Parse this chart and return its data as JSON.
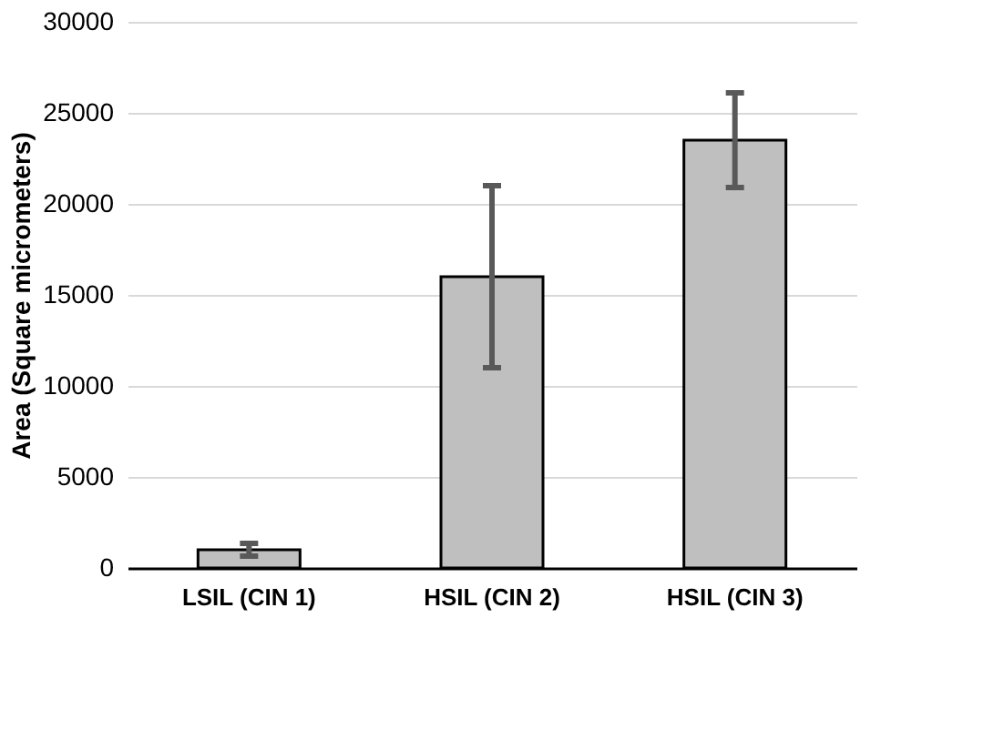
{
  "chart_data": {
    "type": "bar",
    "ylabel": "Area (Square micrometers)",
    "categories": [
      "LSIL (CIN 1)",
      "HSIL (CIN 2)",
      "HSIL (CIN 3)"
    ],
    "values": [
      1000,
      16000,
      23500
    ],
    "color": "#bfbfbf",
    "errors": [
      350,
      5000,
      2600
    ],
    "ylim": [
      0,
      30000
    ],
    "yticks": [
      0,
      5000,
      10000,
      15000,
      20000,
      25000,
      30000
    ],
    "grid": "y"
  }
}
